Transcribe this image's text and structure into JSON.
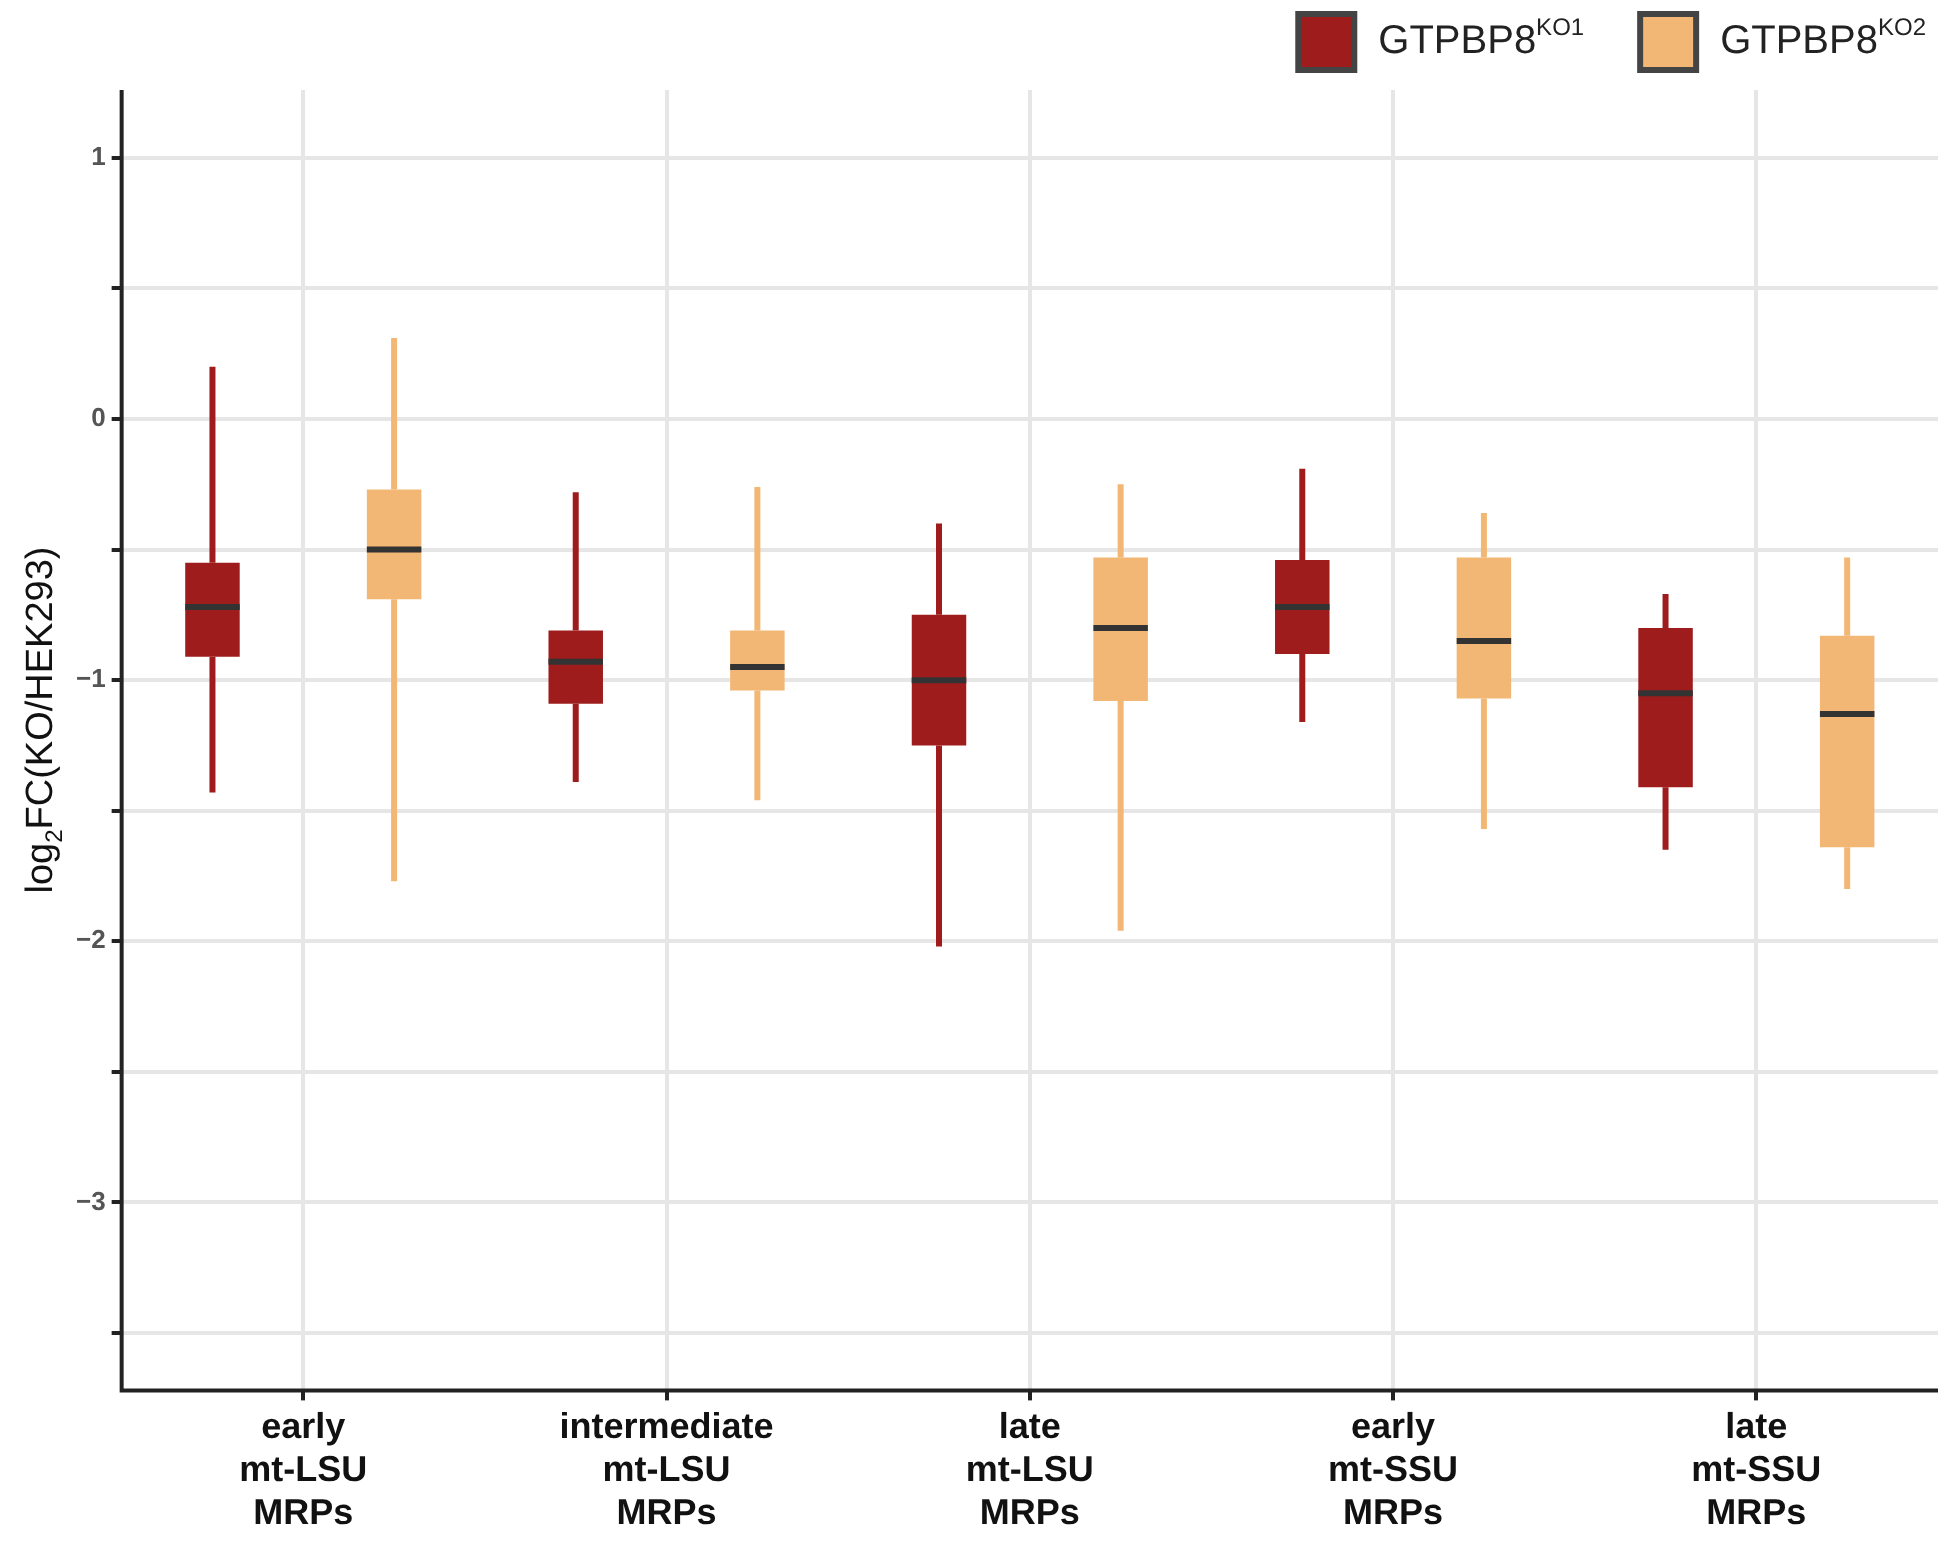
{
  "chart_data": {
    "type": "box",
    "ylabel": "log$_{2}$FC(KO/HEK293)",
    "categories": [
      "early mt-LSU MRPs",
      "intermediate mt-LSU MRPs",
      "late mt-LSU MRPs",
      "early mt-SSU MRPs",
      "late mt-SSU MRPs"
    ],
    "series": [
      {
        "name": "GTPBP8$^{KO1}$",
        "color": "#9e1c1c",
        "boxes": [
          {
            "low": -1.43,
            "q1": -0.91,
            "median": -0.72,
            "q3": -0.55,
            "high": 0.2
          },
          {
            "low": -1.39,
            "q1": -1.09,
            "median": -0.93,
            "q3": -0.81,
            "high": -0.28
          },
          {
            "low": -2.02,
            "q1": -1.25,
            "median": -1.0,
            "q3": -0.75,
            "high": -0.4
          },
          {
            "low": -1.16,
            "q1": -0.9,
            "median": -0.72,
            "q3": -0.54,
            "high": -0.19
          },
          {
            "low": -1.65,
            "q1": -1.41,
            "median": -1.05,
            "q3": -0.8,
            "high": -0.67
          }
        ]
      },
      {
        "name": "GTPBP8$^{KO2}$",
        "color": "#f2b775",
        "boxes": [
          {
            "low": -1.77,
            "q1": -0.69,
            "median": -0.5,
            "q3": -0.27,
            "high": 0.31
          },
          {
            "low": -1.46,
            "q1": -1.04,
            "median": -0.95,
            "q3": -0.81,
            "high": -0.26
          },
          {
            "low": -1.96,
            "q1": -1.08,
            "median": -0.8,
            "q3": -0.53,
            "high": -0.25
          },
          {
            "low": -1.57,
            "q1": -1.07,
            "median": -0.85,
            "q3": -0.53,
            "high": -0.36
          },
          {
            "low": -1.8,
            "q1": -1.64,
            "median": -1.13,
            "q3": -0.83,
            "high": -0.53
          }
        ]
      }
    ],
    "ylim": [
      -3.72,
      1.26
    ],
    "yticks": [
      1,
      {
        "value": 0.5,
        "label": null
      },
      0,
      {
        "value": -0.5,
        "label": null
      },
      {
        "value": -1,
        "label": "−1"
      },
      {
        "value": -1.5,
        "label": null
      },
      {
        "value": -2,
        "label": "−2"
      },
      {
        "value": -2.5,
        "label": null
      },
      {
        "value": -3,
        "label": "−3"
      },
      {
        "value": -3.5,
        "label": null
      }
    ],
    "grid": true,
    "legend": "top right"
  }
}
